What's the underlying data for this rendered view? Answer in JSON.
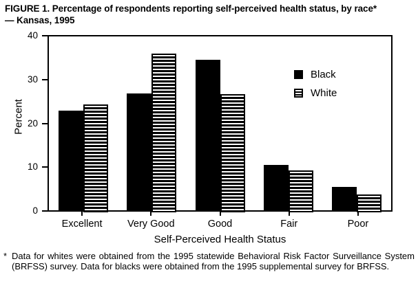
{
  "title": {
    "line1": "FIGURE 1. Percentage of respondents reporting self-perceived health status, by race*",
    "line2": "— Kansas, 1995"
  },
  "chart_data": {
    "type": "bar",
    "categories": [
      "Excellent",
      "Very Good",
      "Good",
      "Fair",
      "Poor"
    ],
    "series": [
      {
        "name": "Black",
        "style": "solid",
        "values": [
          22.9,
          26.9,
          34.7,
          10.4,
          5.4
        ]
      },
      {
        "name": "White",
        "style": "striped",
        "values": [
          24.3,
          36.1,
          26.8,
          9.1,
          3.6
        ]
      }
    ],
    "xlabel": "Self-Perceived Health Status",
    "ylabel": "Percent",
    "ylim": [
      0,
      40
    ],
    "yticks": [
      0,
      10,
      20,
      30,
      40
    ],
    "grid": false,
    "legend_position": "inside-upper-right"
  },
  "footnote": {
    "marker": "*",
    "text": "Data for whites were obtained from the 1995 statewide Behavioral Risk Factor Surveillance System (BRFSS) survey. Data for blacks were obtained from the 1995 supplemental survey for BRFSS."
  },
  "colors": {
    "foreground": "#000000",
    "background": "#ffffff"
  }
}
